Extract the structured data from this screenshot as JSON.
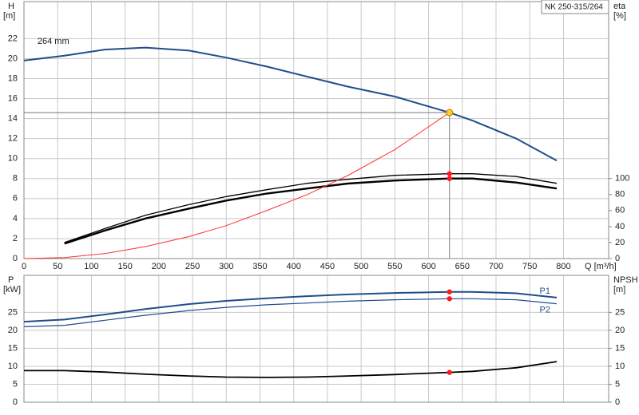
{
  "chart_data": [
    {
      "type": "line",
      "title": "NK 250-315/264",
      "annotation": "264 mm",
      "ylabel": [
        "H",
        "[m]"
      ],
      "y2label": [
        "eta",
        "[%]"
      ],
      "xlabel": "Q [m³/h]",
      "x": [
        0,
        60,
        120,
        180,
        245,
        300,
        360,
        420,
        480,
        550,
        631,
        665,
        730,
        790
      ],
      "xlim": [
        0,
        867
      ],
      "xticks": [
        0,
        50,
        100,
        150,
        200,
        250,
        300,
        350,
        400,
        450,
        500,
        550,
        600,
        650,
        700,
        750,
        800
      ],
      "ylim": [
        0,
        25.7
      ],
      "yticks": [
        0,
        2,
        4,
        6,
        8,
        10,
        12,
        14,
        16,
        18,
        20,
        22
      ],
      "y2lim": [
        0,
        321
      ],
      "y2ticks": [
        0,
        20,
        40,
        60,
        80,
        100
      ],
      "grid": true,
      "duty_point": 631,
      "series": [
        {
          "color": "#1f4e8c",
          "width": 2,
          "values": [
            19.8,
            20.3,
            20.9,
            21.1,
            20.8,
            20.1,
            19.2,
            18.2,
            17.2,
            16.2,
            14.6,
            13.8,
            12.0,
            9.8
          ]
        },
        {
          "color": "#000000",
          "width": 1.3,
          "axis": "y2",
          "values": [
            null,
            20,
            37.5,
            54,
            67.5,
            77.5,
            86,
            94,
            99,
            104,
            106,
            106,
            102.5,
            94
          ]
        },
        {
          "color": "#000000",
          "width": 2.4,
          "axis": "y2",
          "values": [
            null,
            18.75,
            35,
            50,
            62.5,
            72.5,
            81.25,
            87.5,
            93.75,
            97.5,
            100,
            100,
            95,
            87.5
          ]
        },
        {
          "color": "#ff3030",
          "width": 1,
          "values": [
            0,
            0.1,
            0.5,
            1.2,
            2.2,
            3.3,
            4.8,
            6.4,
            8.3,
            10.9,
            14.6,
            null,
            null,
            null
          ]
        }
      ]
    },
    {
      "type": "line",
      "ylabel": [
        "P",
        "[kW]"
      ],
      "y2label": [
        "NPSH",
        "[m]"
      ],
      "x": [
        0,
        60,
        120,
        180,
        245,
        300,
        360,
        420,
        480,
        550,
        631,
        665,
        730,
        790
      ],
      "xlim": [
        0,
        867
      ],
      "xticks": [
        0,
        50,
        100,
        150,
        200,
        250,
        300,
        350,
        400,
        450,
        500,
        550,
        600,
        650,
        700,
        750,
        800
      ],
      "ylim": [
        0,
        35.3
      ],
      "yticks": [
        0,
        5,
        10,
        15,
        20,
        25
      ],
      "y2lim": [
        0,
        35.3
      ],
      "y2ticks": [
        0,
        5,
        10,
        15,
        20,
        25
      ],
      "grid": true,
      "duty_point": 631,
      "series": [
        {
          "name": "P1",
          "color": "#1f4e8c",
          "width": 2,
          "values": [
            22.4,
            23.0,
            24.4,
            25.9,
            27.3,
            28.2,
            28.9,
            29.5,
            30.0,
            30.4,
            30.7,
            30.7,
            30.3,
            29.1
          ]
        },
        {
          "name": "P2",
          "color": "#1f4e8c",
          "width": 1.2,
          "values": [
            21.0,
            21.4,
            22.8,
            24.2,
            25.5,
            26.4,
            27.1,
            27.6,
            28.1,
            28.5,
            28.8,
            28.8,
            28.5,
            27.4
          ]
        },
        {
          "color": "#000000",
          "width": 1.8,
          "axis": "y2",
          "values": [
            8.8,
            8.8,
            8.4,
            7.8,
            7.3,
            7.0,
            6.9,
            7.0,
            7.3,
            7.7,
            8.3,
            8.6,
            9.6,
            11.3
          ]
        }
      ]
    }
  ]
}
